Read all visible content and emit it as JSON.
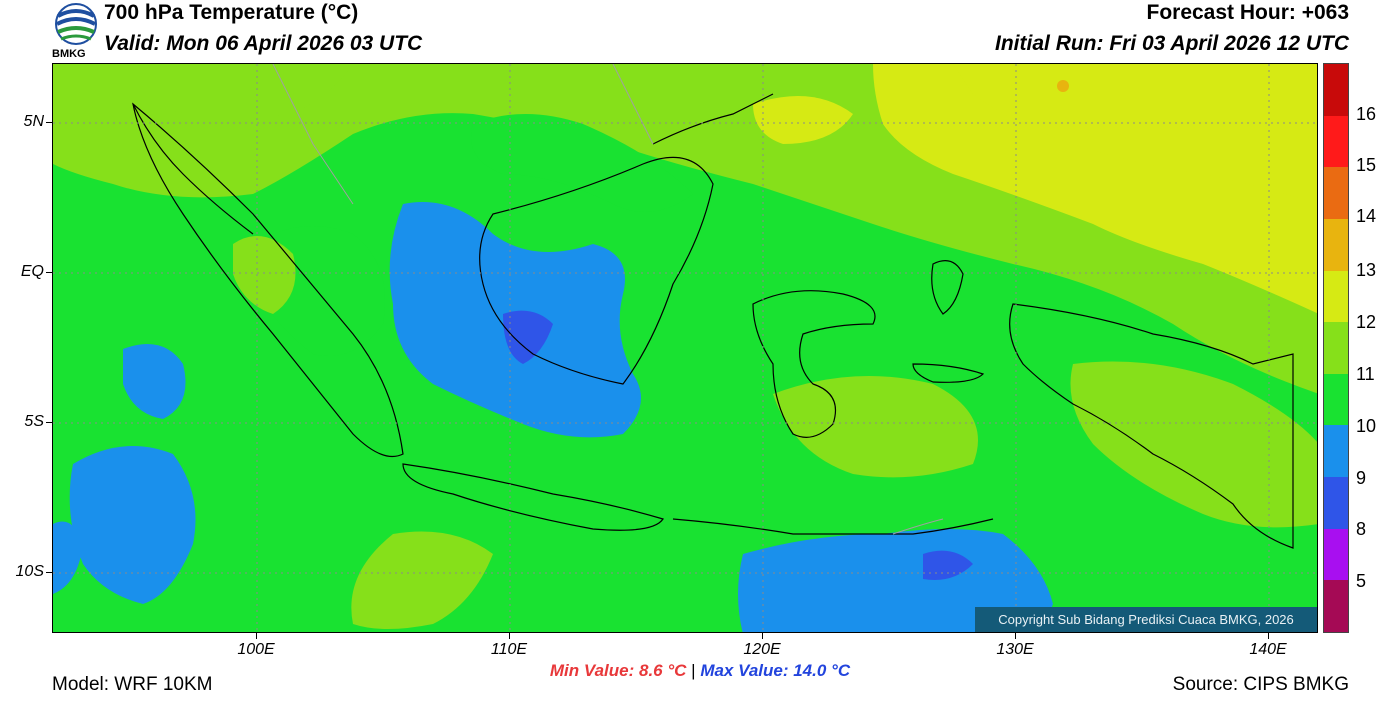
{
  "header": {
    "title": "700 hPa Temperature (°C)",
    "valid": "Valid: Mon 06 April 2026 03 UTC",
    "forecast_hour": "Forecast Hour: +063",
    "initial_run": "Initial Run: Fri 03 April 2026 12 UTC"
  },
  "logo": {
    "text": "BMKG",
    "icon": "bmkg-logo-icon"
  },
  "map": {
    "lat_labels": [
      "5N",
      "EQ",
      "5S",
      "10S"
    ],
    "lon_labels": [
      "100E",
      "110E",
      "120E",
      "130E",
      "140E"
    ],
    "copyright": "Copyright Sub Bidang Prediksi Cuaca BMKG, 2026",
    "field_colors": {
      "background": "#19e231",
      "t12": "#86e01a",
      "t13": "#d6ea14",
      "t10": "#1a90ec",
      "t9": "#2f55e8"
    }
  },
  "colorbar": {
    "labels": [
      "16",
      "15",
      "14",
      "13",
      "12",
      "11",
      "10",
      "9",
      "8",
      "5"
    ],
    "colors": [
      "#c80a0a",
      "#ff1a1a",
      "#ea6b12",
      "#e8b40f",
      "#d6ea14",
      "#86e01a",
      "#19e231",
      "#1a90ec",
      "#2f55e8",
      "#a80ff0",
      "#a50a55"
    ]
  },
  "stats": {
    "min": "Min Value: 8.6 °C",
    "separator": "|",
    "max": "Max Value: 14.0 °C"
  },
  "footer": {
    "model": "Model: WRF 10KM",
    "source": "Source: CIPS BMKG"
  }
}
